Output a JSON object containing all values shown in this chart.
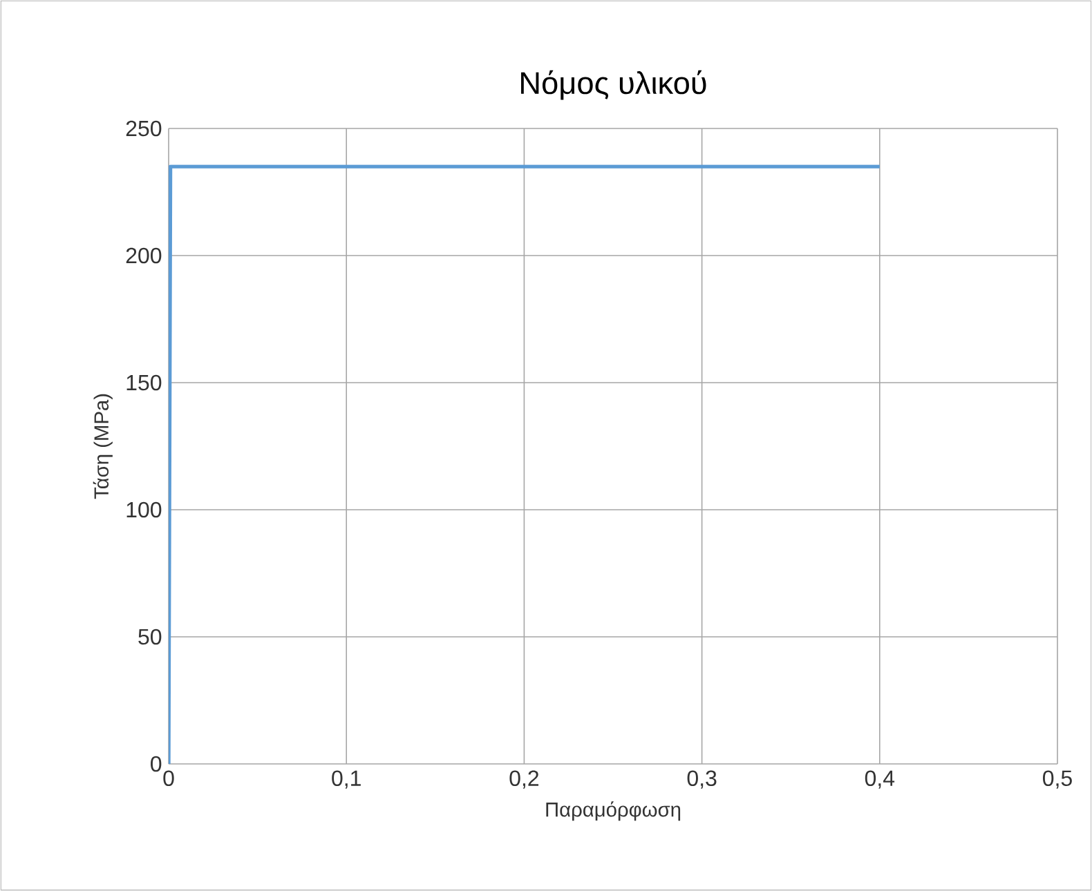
{
  "chart_data": {
    "type": "line",
    "title": "Νόμος υλικού",
    "xlabel": "Παραμόρφωση",
    "ylabel": "Τάση (MPa)",
    "x": [
      0,
      0.001,
      0.4
    ],
    "series": [
      {
        "color": "#5b9bd5",
        "values": [
          0,
          235,
          235
        ]
      }
    ],
    "xlim": [
      0,
      0.5
    ],
    "ylim": [
      0,
      250
    ],
    "xticks": [
      0,
      {
        "value": 0.1,
        "label": "0,1"
      },
      {
        "value": 0.2,
        "label": "0,2"
      },
      {
        "value": 0.3,
        "label": "0,3"
      },
      {
        "value": 0.4,
        "label": "0,4"
      },
      {
        "value": 0.5,
        "label": "0,5"
      }
    ],
    "yticks": [
      0,
      50,
      100,
      150,
      200,
      250
    ],
    "grid": true,
    "marker": "none",
    "line_style": "solid"
  }
}
